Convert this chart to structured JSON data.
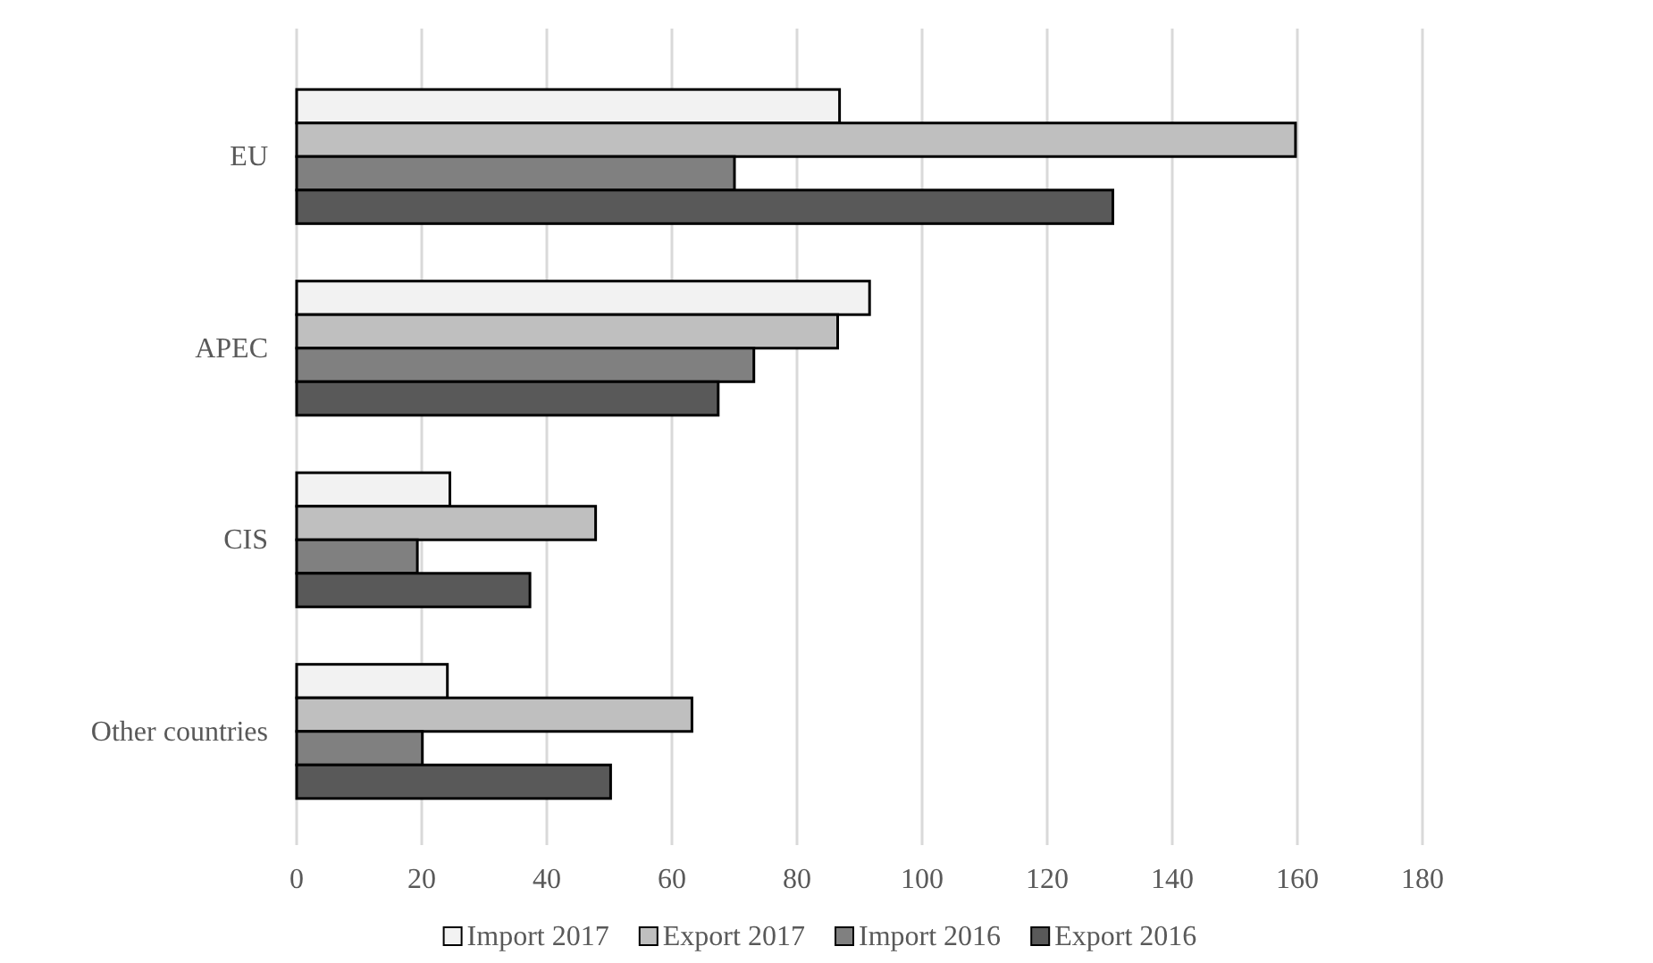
{
  "chart_data": {
    "type": "bar",
    "orientation": "horizontal",
    "categories": [
      "EU",
      "APEC",
      "CIS",
      "Other countries"
    ],
    "series": [
      {
        "name": "Import 2017",
        "color": "#f2f2f2",
        "values": [
          86.8,
          91.6,
          24.5,
          24.1
        ]
      },
      {
        "name": "Export 2017",
        "color": "#bfbfbf",
        "values": [
          159.7,
          86.5,
          47.8,
          63.2
        ]
      },
      {
        "name": "Import 2016",
        "color": "#808080",
        "values": [
          70,
          73.1,
          19.3,
          20.1
        ]
      },
      {
        "name": "Export 2016",
        "color": "#595959",
        "values": [
          130.5,
          67.4,
          37.3,
          50.2
        ]
      }
    ],
    "xlim": [
      0,
      180
    ],
    "xticks": [
      0,
      20,
      40,
      60,
      80,
      100,
      120,
      140,
      160,
      180
    ],
    "grid": "x",
    "legend": "bottom"
  }
}
